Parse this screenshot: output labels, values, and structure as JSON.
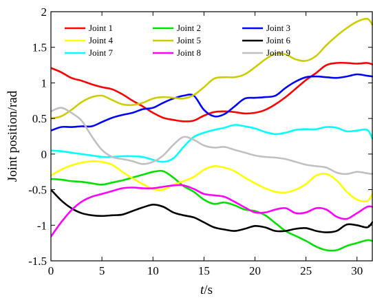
{
  "chart_data": {
    "type": "line",
    "xlabel_var": "t",
    "xlabel_unit": "/s",
    "ylabel": "Joint position/rad",
    "xlim": [
      0,
      31.5
    ],
    "ylim": [
      -1.5,
      2
    ],
    "xticks": [
      0,
      5,
      10,
      15,
      20,
      25,
      30
    ],
    "yticks": [
      -1.5,
      -1,
      -0.5,
      0,
      0.5,
      1,
      1.5,
      2
    ],
    "xtick_labels": [
      "0",
      "5",
      "10",
      "15",
      "20",
      "25",
      "30"
    ],
    "ytick_labels": [
      "-1.5",
      "-1",
      "-0.5",
      "0",
      "0.5",
      "1",
      "1.5",
      "2"
    ],
    "grid": false,
    "legend_placement": "top",
    "series": [
      {
        "name": "Joint 1",
        "color": "#ff0000",
        "x": [
          0,
          1,
          2,
          3,
          4,
          5,
          6,
          7,
          8,
          9,
          10,
          11,
          12,
          13,
          14,
          15,
          16,
          17,
          18,
          19,
          20,
          21,
          22,
          23,
          24,
          25,
          26,
          27,
          28,
          29,
          30,
          31,
          31.5
        ],
        "y": [
          1.21,
          1.15,
          1.07,
          1.03,
          0.98,
          0.94,
          0.91,
          0.84,
          0.75,
          0.67,
          0.58,
          0.51,
          0.48,
          0.46,
          0.47,
          0.54,
          0.59,
          0.6,
          0.59,
          0.57,
          0.58,
          0.62,
          0.7,
          0.8,
          0.92,
          1.04,
          1.14,
          1.25,
          1.28,
          1.28,
          1.27,
          1.28,
          1.26
        ]
      },
      {
        "name": "Joint 2",
        "color": "#00e000",
        "x": [
          0,
          1,
          2,
          3,
          4,
          5,
          6,
          7,
          8,
          9,
          10,
          11,
          12,
          13,
          14,
          15,
          16,
          17,
          18,
          19,
          20,
          21,
          22,
          23,
          24,
          25,
          26,
          27,
          28,
          29,
          30,
          31,
          31.5
        ],
        "y": [
          -0.35,
          -0.36,
          -0.38,
          -0.39,
          -0.41,
          -0.43,
          -0.4,
          -0.37,
          -0.33,
          -0.29,
          -0.25,
          -0.24,
          -0.33,
          -0.45,
          -0.53,
          -0.64,
          -0.7,
          -0.68,
          -0.72,
          -0.78,
          -0.8,
          -0.86,
          -0.97,
          -1.08,
          -1.15,
          -1.22,
          -1.3,
          -1.35,
          -1.35,
          -1.29,
          -1.25,
          -1.21,
          -1.22
        ]
      },
      {
        "name": "Joint 3",
        "color": "#0000ff",
        "x": [
          0,
          1,
          2,
          3,
          4,
          5,
          6,
          7,
          8,
          9,
          10,
          11,
          12,
          13,
          14,
          15,
          16,
          17,
          18,
          19,
          20,
          21,
          22,
          23,
          24,
          25,
          26,
          27,
          28,
          29,
          30,
          31,
          31.5
        ],
        "y": [
          0.33,
          0.38,
          0.38,
          0.39,
          0.39,
          0.45,
          0.51,
          0.55,
          0.58,
          0.63,
          0.65,
          0.72,
          0.78,
          0.82,
          0.82,
          0.62,
          0.53,
          0.56,
          0.67,
          0.78,
          0.79,
          0.8,
          0.82,
          0.93,
          1.02,
          1.08,
          1.09,
          1.08,
          1.07,
          1.09,
          1.12,
          1.1,
          1.09
        ]
      },
      {
        "name": "Joint 4",
        "color": "#ffff00",
        "x": [
          0,
          1,
          2,
          3,
          4,
          5,
          6,
          7,
          8,
          9,
          10,
          11,
          12,
          13,
          14,
          15,
          16,
          17,
          18,
          19,
          20,
          21,
          22,
          23,
          24,
          25,
          26,
          27,
          28,
          29,
          30,
          31,
          31.5
        ],
        "y": [
          -0.3,
          -0.22,
          -0.16,
          -0.12,
          -0.1,
          -0.11,
          -0.15,
          -0.25,
          -0.34,
          -0.42,
          -0.49,
          -0.5,
          -0.43,
          -0.38,
          -0.32,
          -0.22,
          -0.17,
          -0.19,
          -0.24,
          -0.33,
          -0.41,
          -0.48,
          -0.53,
          -0.54,
          -0.5,
          -0.42,
          -0.3,
          -0.28,
          -0.37,
          -0.53,
          -0.64,
          -0.66,
          -0.56
        ]
      },
      {
        "name": "Joint 5",
        "color": "#cccc00",
        "x": [
          0,
          1,
          2,
          3,
          4,
          5,
          6,
          7,
          8,
          9,
          10,
          11,
          12,
          13,
          14,
          15,
          16,
          17,
          18,
          19,
          20,
          21,
          22,
          23,
          24,
          25,
          26,
          27,
          28,
          29,
          30,
          31,
          31.5
        ],
        "y": [
          0.5,
          0.53,
          0.62,
          0.73,
          0.8,
          0.82,
          0.76,
          0.7,
          0.69,
          0.72,
          0.78,
          0.8,
          0.79,
          0.78,
          0.83,
          0.94,
          1.06,
          1.08,
          1.08,
          1.12,
          1.22,
          1.33,
          1.41,
          1.4,
          1.33,
          1.31,
          1.38,
          1.53,
          1.66,
          1.77,
          1.86,
          1.9,
          1.82
        ]
      },
      {
        "name": "Joint 6",
        "color": "#000000",
        "x": [
          0,
          1,
          2,
          3,
          4,
          5,
          6,
          7,
          8,
          9,
          10,
          11,
          12,
          13,
          14,
          15,
          16,
          17,
          18,
          19,
          20,
          21,
          22,
          23,
          24,
          25,
          26,
          27,
          28,
          29,
          30,
          31,
          31.5
        ],
        "y": [
          -0.5,
          -0.65,
          -0.76,
          -0.83,
          -0.86,
          -0.87,
          -0.86,
          -0.85,
          -0.8,
          -0.75,
          -0.71,
          -0.74,
          -0.82,
          -0.86,
          -0.89,
          -0.96,
          -1.03,
          -1.06,
          -1.08,
          -1.05,
          -1.01,
          -1.03,
          -1.08,
          -1.08,
          -1.05,
          -1.04,
          -1.08,
          -1.1,
          -1.08,
          -0.99,
          -1.0,
          -1.03,
          -0.96
        ]
      },
      {
        "name": "Joint 7",
        "color": "#00ffff",
        "x": [
          0,
          1,
          2,
          3,
          4,
          5,
          6,
          7,
          8,
          9,
          10,
          11,
          12,
          13,
          14,
          15,
          16,
          17,
          18,
          19,
          20,
          21,
          22,
          23,
          24,
          25,
          26,
          27,
          28,
          29,
          30,
          31,
          31.5
        ],
        "y": [
          0.05,
          0.04,
          0.02,
          0.0,
          -0.02,
          -0.04,
          -0.04,
          -0.03,
          -0.03,
          -0.04,
          -0.08,
          -0.11,
          -0.06,
          0.1,
          0.24,
          0.3,
          0.34,
          0.37,
          0.41,
          0.39,
          0.36,
          0.31,
          0.28,
          0.3,
          0.34,
          0.35,
          0.35,
          0.38,
          0.37,
          0.32,
          0.33,
          0.34,
          0.22
        ]
      },
      {
        "name": "Joint 8",
        "color": "#ff00ff",
        "x": [
          0,
          1,
          2,
          3,
          4,
          5,
          6,
          7,
          8,
          9,
          10,
          11,
          12,
          13,
          14,
          15,
          16,
          17,
          18,
          19,
          20,
          21,
          22,
          23,
          24,
          25,
          26,
          27,
          28,
          29,
          30,
          31,
          31.5
        ],
        "y": [
          -1.16,
          -0.96,
          -0.79,
          -0.67,
          -0.6,
          -0.56,
          -0.52,
          -0.48,
          -0.47,
          -0.48,
          -0.48,
          -0.46,
          -0.44,
          -0.44,
          -0.49,
          -0.56,
          -0.58,
          -0.6,
          -0.67,
          -0.75,
          -0.82,
          -0.82,
          -0.78,
          -0.76,
          -0.83,
          -0.82,
          -0.76,
          -0.78,
          -0.88,
          -0.91,
          -0.83,
          -0.74,
          -0.74
        ]
      },
      {
        "name": "Joint 9",
        "color": "#c0c0c0",
        "x": [
          0,
          1,
          2,
          3,
          4,
          5,
          6,
          7,
          8,
          9,
          10,
          11,
          12,
          13,
          14,
          15,
          16,
          17,
          18,
          19,
          20,
          21,
          22,
          23,
          24,
          25,
          26,
          27,
          28,
          29,
          30,
          31,
          31.5
        ],
        "y": [
          0.6,
          0.65,
          0.58,
          0.47,
          0.25,
          0.06,
          -0.04,
          -0.07,
          -0.1,
          -0.14,
          -0.11,
          -0.02,
          0.13,
          0.24,
          0.2,
          0.12,
          0.09,
          0.1,
          0.06,
          0.02,
          -0.02,
          -0.04,
          -0.05,
          -0.07,
          -0.11,
          -0.15,
          -0.17,
          -0.19,
          -0.26,
          -0.28,
          -0.25,
          -0.27,
          -0.28
        ]
      }
    ]
  }
}
